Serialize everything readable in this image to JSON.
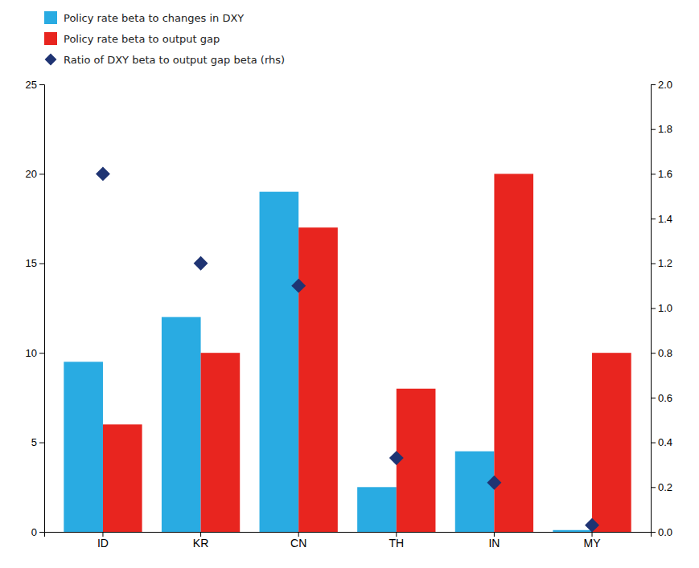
{
  "chart_data": {
    "type": "bar",
    "categories": [
      "ID",
      "KR",
      "CN",
      "TH",
      "IN",
      "MY"
    ],
    "series": [
      {
        "name": "Policy rate beta to changes in DXY",
        "color": "#29ABE2",
        "values": [
          9.5,
          12.0,
          19.0,
          2.5,
          4.5,
          0.1
        ]
      },
      {
        "name": "Policy rate beta to output gap",
        "color": "#E8251F",
        "values": [
          6.0,
          10.0,
          17.0,
          8.0,
          20.0,
          10.0
        ]
      },
      {
        "name": "Ratio of DXY beta to output gap beta (rhs)",
        "color": "#1F3473",
        "values": [
          1.6,
          1.2,
          1.1,
          0.33,
          0.22,
          0.03
        ],
        "axis": "y2",
        "type": "scatter",
        "marker": "diamond"
      }
    ],
    "ylim": [
      0,
      25
    ],
    "yticks": [
      0,
      5,
      10,
      15,
      20,
      25
    ],
    "y2lim": [
      0,
      2.0
    ],
    "y2ticks": [
      {
        "value": 0.0,
        "label": "0.0"
      },
      {
        "value": 0.2,
        "label": "0.2"
      },
      {
        "value": 0.4,
        "label": "0.4"
      },
      {
        "value": 0.6,
        "label": "0.6"
      },
      {
        "value": 0.8,
        "label": "0.8"
      },
      {
        "value": 1.0,
        "label": "1.0"
      },
      {
        "value": 1.2,
        "label": "1.2"
      },
      {
        "value": 1.4,
        "label": "1.4"
      },
      {
        "value": 1.6,
        "label": "1.6"
      },
      {
        "value": 1.8,
        "label": "1.8"
      },
      {
        "value": 2.0,
        "label": "2.0"
      }
    ],
    "grid": false
  }
}
